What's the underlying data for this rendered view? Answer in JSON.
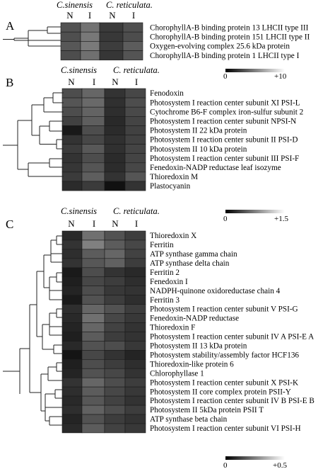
{
  "figure": {
    "panels": [
      {
        "letter": "A",
        "species": [
          "C.sinensis",
          "C. reticulata."
        ],
        "columns": [
          "N",
          "I",
          "N",
          "I"
        ],
        "scale": {
          "min": "0",
          "max": "+10"
        }
      },
      {
        "letter": "B",
        "species": [
          "C.sinensis",
          "C. reticulata."
        ],
        "columns": [
          "N",
          "I",
          "N",
          "I"
        ],
        "scale": {
          "min": "0",
          "max": "+1.5"
        }
      },
      {
        "letter": "C",
        "species": [
          "C.sinensis",
          "C. reticulata."
        ],
        "columns": [
          "N",
          "I",
          "N",
          "I"
        ],
        "scale": {
          "min": "0",
          "max": "+0.5"
        }
      }
    ]
  },
  "chart_data": [
    {
      "type": "heatmap",
      "panel": "A",
      "color_scale": {
        "min": 0,
        "max": 10,
        "low_color": "#000000",
        "high_color": "#ffffff"
      },
      "columns": [
        "N",
        "I",
        "N",
        "I"
      ],
      "column_groups": [
        "C.sinensis",
        "C.sinensis",
        "C. reticulata.",
        "C. reticulata."
      ],
      "rows": [
        "ChorophyllA-B binding protein 13 LHCII type III",
        "ChorophyllA-B binding protein 151 LHCII type II",
        "Oxygen-evolving complex 25.6 kDa protein",
        "ChorophyllA-B binding protein 1 LHCII type I"
      ],
      "values": [
        [
          3.2,
          4.5,
          2.3,
          3.1
        ],
        [
          3.1,
          4.7,
          2.2,
          3.0
        ],
        [
          3.4,
          4.8,
          2.4,
          3.6
        ],
        [
          3.0,
          4.4,
          2.1,
          3.3
        ]
      ]
    },
    {
      "type": "heatmap",
      "panel": "B",
      "color_scale": {
        "min": 0,
        "max": 1.5,
        "low_color": "#000000",
        "high_color": "#ffffff"
      },
      "columns": [
        "N",
        "I",
        "N",
        "I"
      ],
      "column_groups": [
        "C.sinensis",
        "C.sinensis",
        "C. reticulata.",
        "C. reticulata."
      ],
      "rows": [
        "Fenodoxin",
        "Photosystem I reaction center subunit XI PSI-L",
        "Cytochrome B6-F complex iron-sulfur subunit 2",
        "Photosystem I reaction center subunit NPSI-N",
        "Photosystem II 22 kDa protein",
        "Photosystem I reaction center subunit II PSI-D",
        "Photosystem II 10 kDa protein",
        "Photosystem I reaction center subunit III PSI-F",
        "Fenedoxin-NADP reductase leaf isozyme",
        "Thioredoxin M",
        "Plastocyanin"
      ],
      "values": [
        [
          0.45,
          0.6,
          0.3,
          0.42
        ],
        [
          0.5,
          0.62,
          0.28,
          0.45
        ],
        [
          0.45,
          0.58,
          0.27,
          0.43
        ],
        [
          0.38,
          0.55,
          0.24,
          0.4
        ],
        [
          0.15,
          0.45,
          0.25,
          0.38
        ],
        [
          0.3,
          0.42,
          0.28,
          0.38
        ],
        [
          0.35,
          0.52,
          0.28,
          0.4
        ],
        [
          0.3,
          0.45,
          0.25,
          0.4
        ],
        [
          0.32,
          0.5,
          0.26,
          0.42
        ],
        [
          0.35,
          0.55,
          0.3,
          0.5
        ],
        [
          0.25,
          0.35,
          0.1,
          0.3
        ]
      ]
    },
    {
      "type": "heatmap",
      "panel": "C",
      "color_scale": {
        "min": 0,
        "max": 0.5,
        "low_color": "#000000",
        "high_color": "#ffffff"
      },
      "columns": [
        "N",
        "I",
        "N",
        "I"
      ],
      "column_groups": [
        "C.sinensis",
        "C.sinensis",
        "C. reticulata.",
        "C. reticulata."
      ],
      "rows": [
        "Thioredoxin X",
        "Ferritin",
        "ATP synthase gamma chain",
        "ATP synthase delta chain",
        "Ferritin 2",
        "Fenedoxin I",
        "NADPH-quinone oxidoreductase chain 4",
        "Ferritin 3",
        "Photosystem I reaction center subunit V PSI-G",
        "Fenedoxin-NADP reductase",
        "Thioredoxin F",
        "Photosystem I reaction center subunit IV A PSI-E A",
        "Photosystem II 13 kDa protein",
        "Photosystem stability/assembly factor HCF136",
        "Thioredoxin-like protein 6",
        "Chlorophyllase 1",
        "Photosystem I reaction center subunit X PSI-K",
        "Photosystem II core complex protein PSII-Y",
        "Photosystem I reaction center subunit IV B PSI-E B",
        "Photosystem II 5kDa protein PSII T",
        "ATP synthase beta chain",
        "Photosystem I reaction center subunit VI PSI-H"
      ],
      "values": [
        [
          0.08,
          0.22,
          0.16,
          0.12
        ],
        [
          0.1,
          0.25,
          0.18,
          0.14
        ],
        [
          0.09,
          0.18,
          0.2,
          0.13
        ],
        [
          0.1,
          0.17,
          0.19,
          0.12
        ],
        [
          0.05,
          0.15,
          0.1,
          0.08
        ],
        [
          0.06,
          0.14,
          0.12,
          0.09
        ],
        [
          0.07,
          0.15,
          0.11,
          0.1
        ],
        [
          0.05,
          0.16,
          0.12,
          0.09
        ],
        [
          0.09,
          0.2,
          0.16,
          0.12
        ],
        [
          0.08,
          0.22,
          0.14,
          0.11
        ],
        [
          0.07,
          0.2,
          0.13,
          0.1
        ],
        [
          0.06,
          0.18,
          0.12,
          0.1
        ],
        [
          0.08,
          0.16,
          0.15,
          0.11
        ],
        [
          0.04,
          0.14,
          0.1,
          0.07
        ],
        [
          0.06,
          0.15,
          0.12,
          0.09
        ],
        [
          0.07,
          0.16,
          0.14,
          0.1
        ],
        [
          0.1,
          0.2,
          0.15,
          0.12
        ],
        [
          0.09,
          0.18,
          0.14,
          0.11
        ],
        [
          0.08,
          0.17,
          0.13,
          0.1
        ],
        [
          0.09,
          0.19,
          0.15,
          0.12
        ],
        [
          0.07,
          0.16,
          0.12,
          0.1
        ],
        [
          0.08,
          0.18,
          0.13,
          0.11
        ]
      ]
    }
  ]
}
